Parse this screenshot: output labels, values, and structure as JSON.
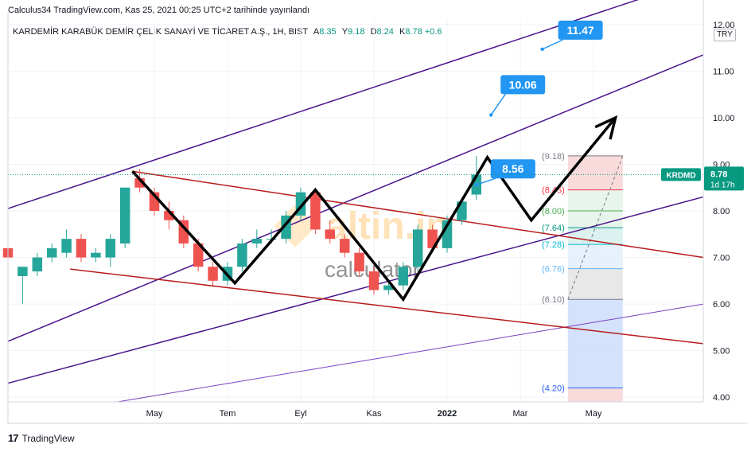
{
  "publish_line": "Calculus34 TradingView.com, Kas 25, 2021 00:25 UTC+2 tarihinde yayınlandı",
  "legend": {
    "symbol": "KARDEMİR KARABÜK DEMİR ÇELİK SANAYİ VE TİCARET A.Ş., 1H, BIST",
    "open_label": "A",
    "open": "8.35",
    "high_label": "Y",
    "high": "9.18",
    "low_label": "D",
    "low": "8.24",
    "close_label": "K",
    "close": "8.78",
    "change": "+0.6"
  },
  "currency": "TRY",
  "footer": {
    "logo": "17",
    "brand": "TradingView"
  },
  "watermark": {
    "brand": "altin.in",
    "sub": "calculator"
  },
  "chart_data": {
    "type": "candlestick",
    "ylim": [
      3.9,
      12.1
    ],
    "y_ticks": [
      4.0,
      5.0,
      6.0,
      7.0,
      8.0,
      9.0,
      10.0,
      11.0,
      12.0
    ],
    "y_tick_labels": [
      "4.00",
      "5.00",
      "6.00",
      "7.00",
      "8.00",
      "9.00",
      "10.00",
      "11.00",
      "12.00"
    ],
    "x_tick_labels": [
      "May",
      "Tem",
      "Eyl",
      "Kas",
      "2022",
      "Mar",
      "May"
    ],
    "x_tick_months": [
      4,
      6,
      8,
      10,
      12,
      14,
      16
    ],
    "x_range_months": [
      0.0,
      19.0
    ],
    "candles": [
      {
        "t": 0.0,
        "o": 7.2,
        "h": 7.4,
        "l": 6.9,
        "c": 7.0
      },
      {
        "t": 0.4,
        "o": 6.6,
        "h": 6.8,
        "l": 6.0,
        "c": 6.8
      },
      {
        "t": 0.8,
        "o": 6.7,
        "h": 7.1,
        "l": 6.6,
        "c": 7.0
      },
      {
        "t": 1.2,
        "o": 7.0,
        "h": 7.3,
        "l": 6.9,
        "c": 7.2
      },
      {
        "t": 1.6,
        "o": 7.1,
        "h": 7.6,
        "l": 7.0,
        "c": 7.4
      },
      {
        "t": 2.0,
        "o": 7.4,
        "h": 7.5,
        "l": 6.9,
        "c": 7.0
      },
      {
        "t": 2.4,
        "o": 7.0,
        "h": 7.2,
        "l": 6.9,
        "c": 7.1
      },
      {
        "t": 2.8,
        "o": 7.0,
        "h": 7.5,
        "l": 6.8,
        "c": 7.4
      },
      {
        "t": 3.2,
        "o": 7.3,
        "h": 8.5,
        "l": 7.2,
        "c": 8.5
      },
      {
        "t": 3.6,
        "o": 8.7,
        "h": 8.9,
        "l": 8.4,
        "c": 8.5
      },
      {
        "t": 4.0,
        "o": 8.4,
        "h": 8.5,
        "l": 7.9,
        "c": 8.0
      },
      {
        "t": 4.4,
        "o": 8.0,
        "h": 8.2,
        "l": 7.6,
        "c": 7.8
      },
      {
        "t": 4.8,
        "o": 7.8,
        "h": 7.9,
        "l": 7.2,
        "c": 7.3
      },
      {
        "t": 5.2,
        "o": 7.3,
        "h": 7.4,
        "l": 6.7,
        "c": 6.8
      },
      {
        "t": 5.6,
        "o": 6.8,
        "h": 6.9,
        "l": 6.4,
        "c": 6.5
      },
      {
        "t": 6.0,
        "o": 6.5,
        "h": 6.9,
        "l": 6.4,
        "c": 6.8
      },
      {
        "t": 6.4,
        "o": 6.8,
        "h": 7.4,
        "l": 6.7,
        "c": 7.3
      },
      {
        "t": 6.8,
        "o": 7.3,
        "h": 7.6,
        "l": 7.2,
        "c": 7.4
      },
      {
        "t": 7.2,
        "o": 7.4,
        "h": 7.6,
        "l": 7.3,
        "c": 7.4
      },
      {
        "t": 7.6,
        "o": 7.4,
        "h": 8.0,
        "l": 7.3,
        "c": 7.9
      },
      {
        "t": 8.0,
        "o": 7.9,
        "h": 8.5,
        "l": 7.8,
        "c": 8.4
      },
      {
        "t": 8.4,
        "o": 8.4,
        "h": 8.5,
        "l": 7.5,
        "c": 7.6
      },
      {
        "t": 8.8,
        "o": 7.6,
        "h": 7.8,
        "l": 7.3,
        "c": 7.4
      },
      {
        "t": 9.2,
        "o": 7.4,
        "h": 7.5,
        "l": 7.0,
        "c": 7.1
      },
      {
        "t": 9.6,
        "o": 7.1,
        "h": 7.2,
        "l": 6.6,
        "c": 6.7
      },
      {
        "t": 10.0,
        "o": 6.7,
        "h": 6.8,
        "l": 6.2,
        "c": 6.3
      },
      {
        "t": 10.4,
        "o": 6.3,
        "h": 6.5,
        "l": 6.2,
        "c": 6.4
      },
      {
        "t": 10.8,
        "o": 6.4,
        "h": 6.9,
        "l": 6.3,
        "c": 6.8
      },
      {
        "t": 11.2,
        "o": 6.8,
        "h": 7.7,
        "l": 6.7,
        "c": 7.6
      },
      {
        "t": 11.6,
        "o": 7.6,
        "h": 7.7,
        "l": 7.1,
        "c": 7.2
      },
      {
        "t": 12.0,
        "o": 7.2,
        "h": 7.9,
        "l": 7.1,
        "c": 7.8
      },
      {
        "t": 12.4,
        "o": 7.8,
        "h": 8.3,
        "l": 7.7,
        "c": 8.2
      },
      {
        "t": 12.8,
        "o": 8.35,
        "h": 9.18,
        "l": 8.24,
        "c": 8.78
      }
    ],
    "last_price_label": "KRDMD",
    "last_price": "8.78",
    "countdown": "1d 17h",
    "callouts": [
      {
        "text": "11.47",
        "t": 14.6,
        "y": 11.47
      },
      {
        "text": "10.06",
        "t": 13.2,
        "y": 10.06
      },
      {
        "text": "8.56",
        "t": 12.8,
        "y": 8.56
      }
    ],
    "fib_levels": [
      {
        "label": "(9.18)",
        "y": 9.18,
        "color": "#787b86",
        "fill": "#f8d7d7"
      },
      {
        "label": "(8.45)",
        "y": 8.45,
        "color": "#f23645",
        "fill": "#e6f4ea"
      },
      {
        "label": "(8.00)",
        "y": 8.0,
        "color": "#4caf50",
        "fill": "#e6f4ea"
      },
      {
        "label": "(7.64)",
        "y": 7.64,
        "color": "#089981",
        "fill": "#d8f1ee"
      },
      {
        "label": "(7.28)",
        "y": 7.28,
        "color": "#00bcd4",
        "fill": "#e3f0fb"
      },
      {
        "label": "(6.76)",
        "y": 6.76,
        "color": "#64b5f6",
        "fill": "#e5e5e5"
      },
      {
        "label": "(6.10)",
        "y": 6.1,
        "color": "#787b86",
        "fill": "#cfe0fb"
      },
      {
        "label": "(4.20)",
        "y": 4.2,
        "color": "#2962ff",
        "fill": "#f8d7d7"
      }
    ],
    "pattern_path": [
      {
        "t": 3.4,
        "y": 8.85
      },
      {
        "t": 6.2,
        "y": 6.45
      },
      {
        "t": 8.4,
        "y": 8.45
      },
      {
        "t": 10.8,
        "y": 6.1
      },
      {
        "t": 13.1,
        "y": 9.15
      },
      {
        "t": 14.3,
        "y": 7.8
      },
      {
        "t": 16.6,
        "y": 10.0
      }
    ],
    "trend_lines": [
      {
        "color": "#4a148c",
        "width": 1.5,
        "p1": {
          "t": 0.0,
          "y": 8.05
        },
        "p2": {
          "t": 19.0,
          "y": 13.0
        }
      },
      {
        "color": "#4a148c",
        "width": 1.5,
        "p1": {
          "t": 0.0,
          "y": 5.2
        },
        "p2": {
          "t": 19.0,
          "y": 11.35
        }
      },
      {
        "color": "#4a148c",
        "width": 1.5,
        "p1": {
          "t": 0.0,
          "y": 4.3
        },
        "p2": {
          "t": 19.0,
          "y": 8.3
        }
      },
      {
        "color": "#7b3fbf",
        "width": 1.0,
        "p1": {
          "t": 3.0,
          "y": 3.9
        },
        "p2": {
          "t": 19.0,
          "y": 6.0
        }
      },
      {
        "color": "#b71c1c",
        "width": 1.5,
        "p1": {
          "t": 3.4,
          "y": 8.85
        },
        "p2": {
          "t": 19.0,
          "y": 7.0
        }
      },
      {
        "color": "#b71c1c",
        "width": 1.5,
        "p1": {
          "t": 1.7,
          "y": 6.75
        },
        "p2": {
          "t": 19.0,
          "y": 5.15
        }
      }
    ]
  }
}
